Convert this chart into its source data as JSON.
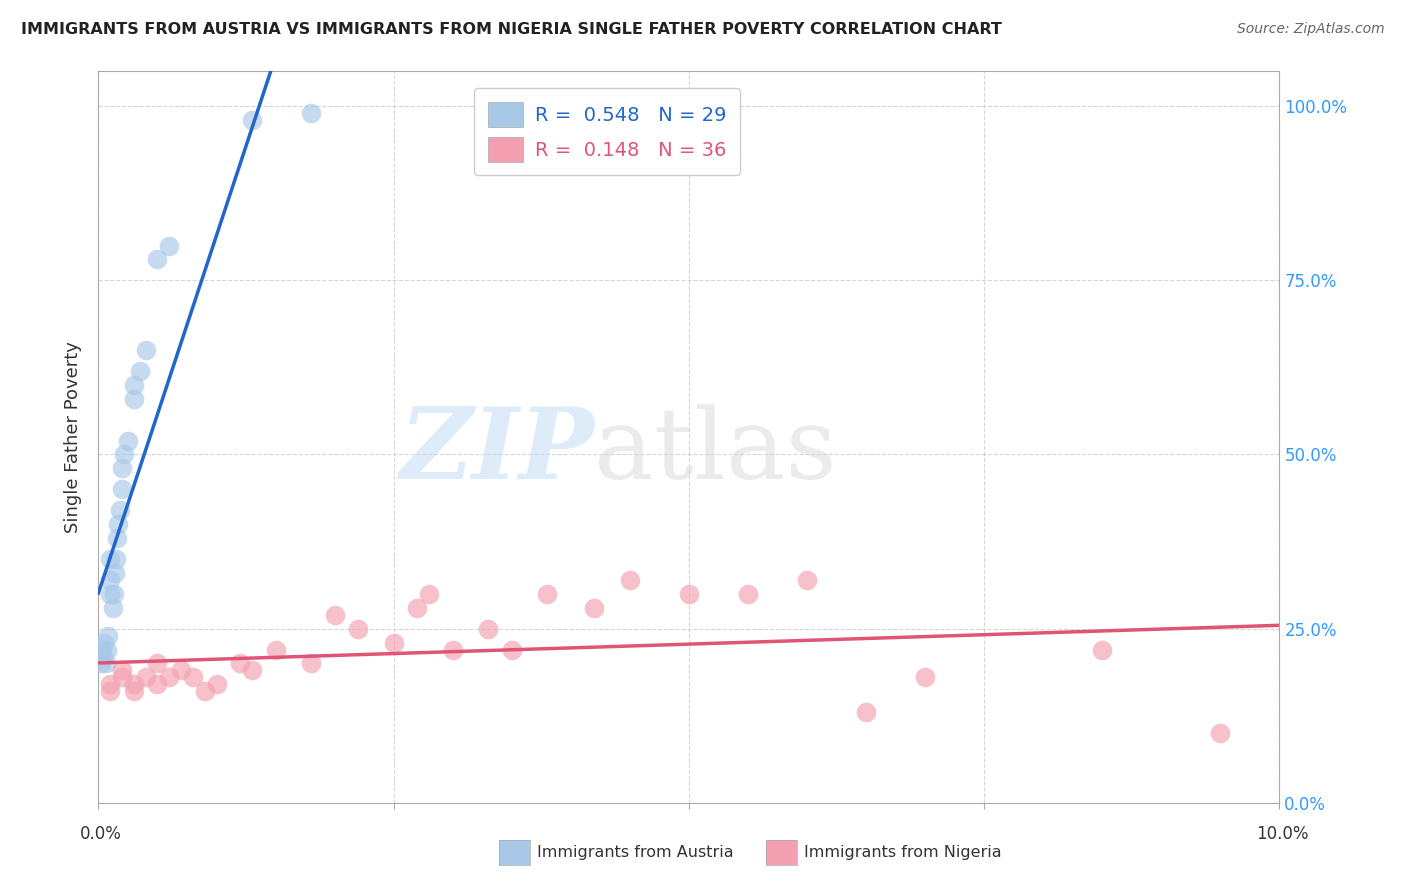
{
  "title": "IMMIGRANTS FROM AUSTRIA VS IMMIGRANTS FROM NIGERIA SINGLE FATHER POVERTY CORRELATION CHART",
  "source": "Source: ZipAtlas.com",
  "ylabel": "Single Father Poverty",
  "legend_austria_r": "R =  0.548",
  "legend_austria_n": "N = 29",
  "legend_nigeria_r": "R =  0.148",
  "legend_nigeria_n": "N = 36",
  "legend_label_austria": "Immigrants from Austria",
  "legend_label_nigeria": "Immigrants from Nigeria",
  "austria_color": "#a8c8e8",
  "nigeria_color": "#f4a0b0",
  "trendline_austria_color": "#2266cc",
  "trendline_nigeria_color": "#e05575",
  "austria_x": [
    0.0002,
    0.0003,
    0.0004,
    0.0005,
    0.0006,
    0.0007,
    0.0008,
    0.001,
    0.001,
    0.001,
    0.0012,
    0.0013,
    0.0014,
    0.0015,
    0.0016,
    0.0017,
    0.0018,
    0.002,
    0.002,
    0.0022,
    0.0025,
    0.003,
    0.003,
    0.0035,
    0.004,
    0.005,
    0.006,
    0.013,
    0.018
  ],
  "austria_y": [
    0.2,
    0.22,
    0.21,
    0.23,
    0.2,
    0.22,
    0.24,
    0.3,
    0.32,
    0.35,
    0.28,
    0.3,
    0.33,
    0.35,
    0.38,
    0.4,
    0.42,
    0.45,
    0.48,
    0.5,
    0.52,
    0.58,
    0.6,
    0.62,
    0.65,
    0.78,
    0.8,
    0.98,
    0.99
  ],
  "nigeria_x": [
    0.001,
    0.001,
    0.002,
    0.002,
    0.003,
    0.003,
    0.004,
    0.005,
    0.005,
    0.006,
    0.007,
    0.008,
    0.009,
    0.01,
    0.012,
    0.013,
    0.015,
    0.018,
    0.02,
    0.022,
    0.025,
    0.027,
    0.028,
    0.03,
    0.033,
    0.035,
    0.038,
    0.042,
    0.045,
    0.05,
    0.055,
    0.06,
    0.065,
    0.07,
    0.085,
    0.095
  ],
  "nigeria_y": [
    0.17,
    0.16,
    0.18,
    0.19,
    0.17,
    0.16,
    0.18,
    0.2,
    0.17,
    0.18,
    0.19,
    0.18,
    0.16,
    0.17,
    0.2,
    0.19,
    0.22,
    0.2,
    0.27,
    0.25,
    0.23,
    0.28,
    0.3,
    0.22,
    0.25,
    0.22,
    0.3,
    0.28,
    0.32,
    0.3,
    0.3,
    0.32,
    0.13,
    0.18,
    0.22,
    0.1
  ],
  "xlim": [
    0,
    0.1
  ],
  "ylim": [
    0,
    1.05
  ],
  "xright_label": "10.0%",
  "xleft_label": "0.0%"
}
